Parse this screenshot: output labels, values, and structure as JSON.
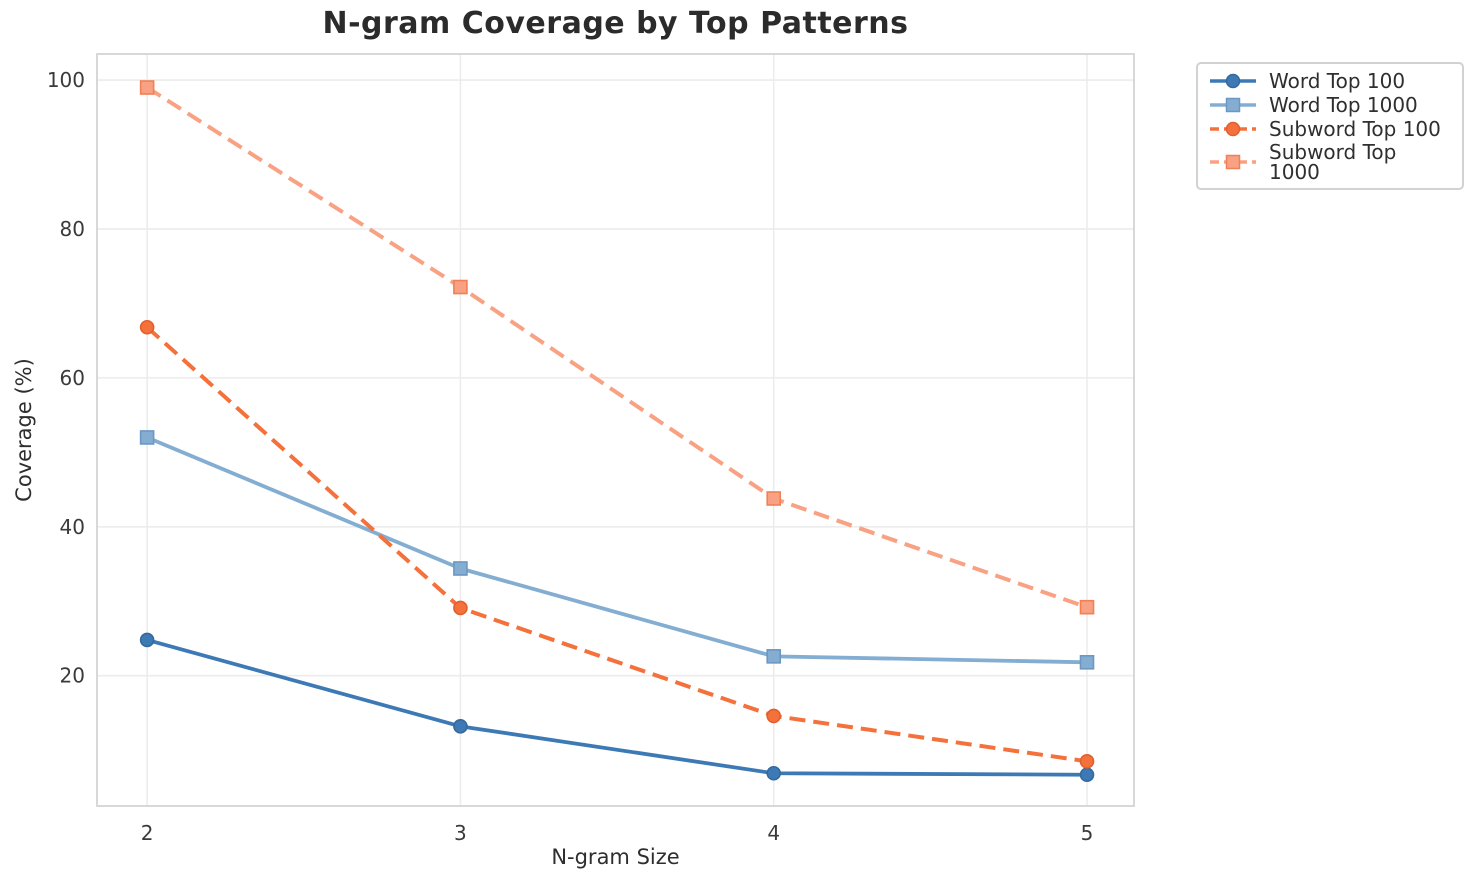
{
  "title": "N-gram Coverage by Top Patterns",
  "chart_data": {
    "type": "line",
    "title": "N-gram Coverage by Top Patterns",
    "xlabel": "N-gram Size",
    "ylabel": "Coverage (%)",
    "x": [
      2,
      3,
      4,
      5
    ],
    "xticks": [
      "2",
      "3",
      "4",
      "5"
    ],
    "yticks": [
      "20",
      "40",
      "60",
      "80",
      "100"
    ],
    "ytick_values": [
      20,
      40,
      60,
      80,
      100
    ],
    "xlim": [
      1.84,
      5.15
    ],
    "ylim": [
      2.5,
      103.5
    ],
    "grid": true,
    "legend_position": "upper-right-outside",
    "series": [
      {
        "name": "Word Top 100",
        "values": [
          24.8,
          13.2,
          6.9,
          6.7
        ],
        "color": "#3d7ab5",
        "marker": "circle",
        "linestyle": "solid",
        "marker_edge": "#35689b"
      },
      {
        "name": "Word Top 1000",
        "values": [
          52.0,
          34.4,
          22.6,
          21.8
        ],
        "color": "#84add2",
        "marker": "square",
        "linestyle": "solid",
        "marker_edge": "#6b97c2"
      },
      {
        "name": "Subword Top 100",
        "values": [
          66.8,
          29.1,
          14.6,
          8.5
        ],
        "color": "#f4713b",
        "marker": "circle",
        "linestyle": "dashed",
        "marker_edge": "#e15f2c"
      },
      {
        "name": "Subword Top 1000",
        "values": [
          99.0,
          72.2,
          43.8,
          29.2
        ],
        "color": "#f9a183",
        "marker": "square",
        "linestyle": "dashed",
        "marker_edge": "#f08055"
      }
    ]
  },
  "colors": {
    "background": "#ffffff",
    "grid": "#ececec",
    "spine": "#d4d4d4",
    "title_text": "#2b2b2b",
    "axis_text": "#2e2e2e",
    "tick_text": "#3a3a3a"
  }
}
